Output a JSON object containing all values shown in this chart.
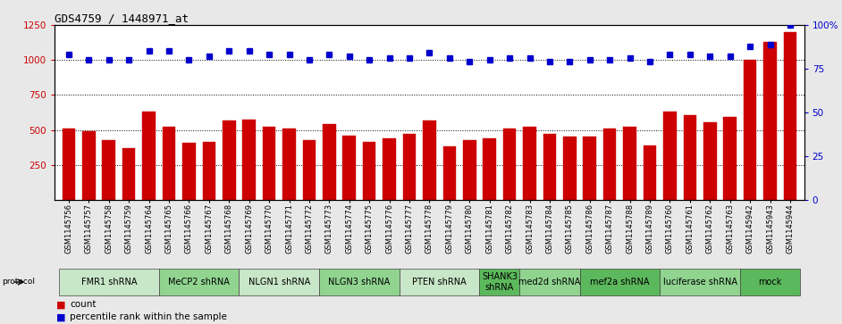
{
  "title": "GDS4759 / 1448971_at",
  "samples": [
    "GSM1145756",
    "GSM1145757",
    "GSM1145758",
    "GSM1145759",
    "GSM1145764",
    "GSM1145765",
    "GSM1145766",
    "GSM1145767",
    "GSM1145768",
    "GSM1145769",
    "GSM1145770",
    "GSM1145771",
    "GSM1145772",
    "GSM1145773",
    "GSM1145774",
    "GSM1145775",
    "GSM1145776",
    "GSM1145777",
    "GSM1145778",
    "GSM1145779",
    "GSM1145780",
    "GSM1145781",
    "GSM1145782",
    "GSM1145783",
    "GSM1145784",
    "GSM1145785",
    "GSM1145786",
    "GSM1145787",
    "GSM1145788",
    "GSM1145789",
    "GSM1145760",
    "GSM1145761",
    "GSM1145762",
    "GSM1145763",
    "GSM1145942",
    "GSM1145943",
    "GSM1145944"
  ],
  "bar_values": [
    510,
    490,
    430,
    370,
    630,
    520,
    405,
    415,
    570,
    575,
    520,
    510,
    430,
    545,
    460,
    415,
    440,
    470,
    565,
    380,
    430,
    440,
    510,
    520,
    470,
    455,
    450,
    510,
    520,
    390,
    630,
    605,
    555,
    590,
    1000,
    1130,
    1200
  ],
  "percentile_values": [
    83,
    80,
    80,
    80,
    85,
    85,
    80,
    82,
    85,
    85,
    83,
    83,
    80,
    83,
    82,
    80,
    81,
    81,
    84,
    81,
    79,
    80,
    81,
    81,
    79,
    79,
    80,
    80,
    81,
    79,
    83,
    83,
    82,
    82,
    88,
    89,
    100
  ],
  "protocols": [
    {
      "label": "FMR1 shRNA",
      "start": 0,
      "end": 5,
      "color": "#c8e6c8"
    },
    {
      "label": "MeCP2 shRNA",
      "start": 5,
      "end": 9,
      "color": "#90d490"
    },
    {
      "label": "NLGN1 shRNA",
      "start": 9,
      "end": 13,
      "color": "#c8e6c8"
    },
    {
      "label": "NLGN3 shRNA",
      "start": 13,
      "end": 17,
      "color": "#90d490"
    },
    {
      "label": "PTEN shRNA",
      "start": 17,
      "end": 21,
      "color": "#c8e6c8"
    },
    {
      "label": "SHANK3\nshRNA",
      "start": 21,
      "end": 23,
      "color": "#5cb85c"
    },
    {
      "label": "med2d shRNA",
      "start": 23,
      "end": 26,
      "color": "#90d490"
    },
    {
      "label": "mef2a shRNA",
      "start": 26,
      "end": 30,
      "color": "#5cb85c"
    },
    {
      "label": "luciferase shRNA",
      "start": 30,
      "end": 34,
      "color": "#90d490"
    },
    {
      "label": "mock",
      "start": 34,
      "end": 37,
      "color": "#5cb85c"
    }
  ],
  "ylim_left": [
    0,
    1250
  ],
  "yticks_left": [
    250,
    500,
    750,
    1000,
    1250
  ],
  "ylim_right": [
    0,
    100
  ],
  "yticks_right": [
    0,
    25,
    50,
    75,
    100
  ],
  "bar_color": "#cc0000",
  "dot_color": "#0000cc",
  "bg_color": "#e8e8e8",
  "plot_bg": "#ffffff",
  "title_fontsize": 9,
  "tick_fontsize": 6,
  "protocol_fontsize": 7,
  "legend_fontsize": 7.5,
  "left_tick_color": "#cc0000",
  "right_tick_color": "#0000cc"
}
